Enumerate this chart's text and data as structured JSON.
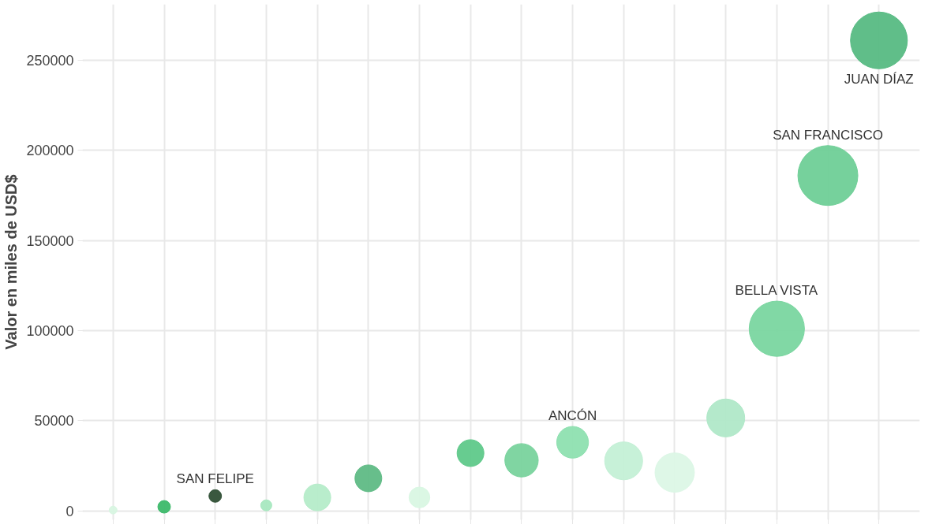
{
  "chart_data": {
    "type": "bubble",
    "ylabel": "Valor en miles de USD$",
    "categories": [
      null,
      null,
      null,
      null,
      null,
      null,
      null,
      null,
      null,
      null,
      null,
      null,
      null,
      null,
      null,
      null
    ],
    "values": [
      400,
      2200,
      8200,
      3000,
      7400,
      18000,
      7400,
      32000,
      28000,
      38000,
      27700,
      21200,
      51500,
      101000,
      186000,
      261000
    ],
    "sizes": [
      0.017,
      0.044,
      0.044,
      0.034,
      0.2,
      0.2,
      0.12,
      0.2,
      0.31,
      0.28,
      0.4,
      0.43,
      0.4,
      0.85,
      1,
      0.9
    ],
    "colors": [
      "#d8f6e2",
      "#3cb96a",
      "#2f4f35",
      "#a8e8c0",
      "#b5ecc9",
      "#5fbb85",
      "#d9f7e3",
      "#5fc98a",
      "#79d39d",
      "#8ee0b0",
      "#c4f0d6",
      "#dcf7e6",
      "#b0e8c8",
      "#7ad6a0",
      "#6fcf97",
      "#57bb83"
    ],
    "annotations": [
      {
        "text": "JUAN DÍAZ",
        "y": 261000
      },
      {
        "text": "SAN FRANCISCO",
        "y": 186000
      },
      {
        "text": "BELLA VISTA",
        "y": 101000
      },
      {
        "text": "ANCÓN",
        "y": 38000
      },
      {
        "text": "SAN FELIPE",
        "y": 8200
      }
    ],
    "ylim": [
      -5000,
      281000
    ],
    "yticks": [
      0,
      50000,
      100000,
      150000,
      200000,
      250000
    ],
    "tick_labels": "y",
    "grid": true
  }
}
